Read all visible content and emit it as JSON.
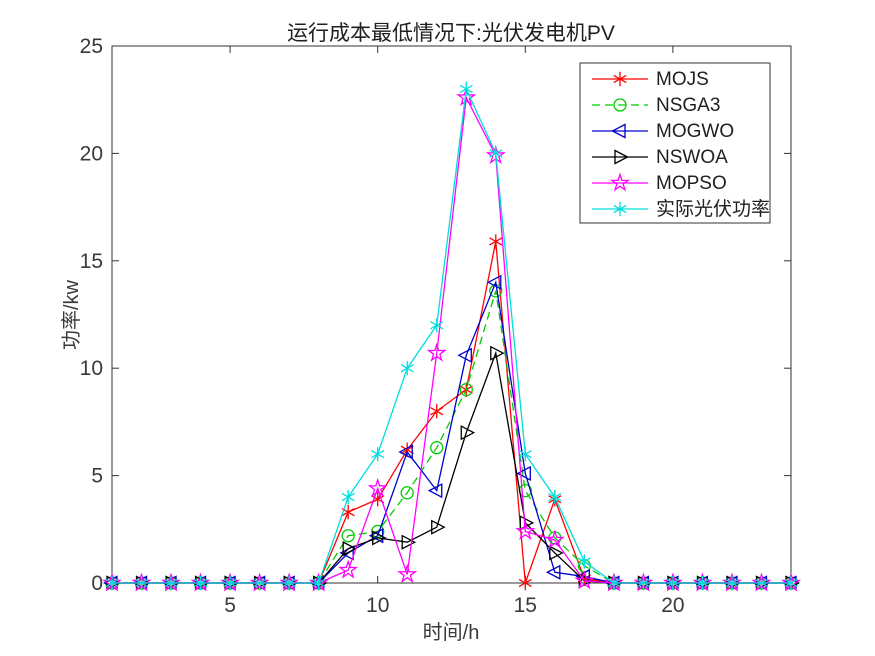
{
  "chart_data": {
    "type": "line",
    "title": "运行成本最低情况下:光伏发电机PV",
    "xlabel": "时间/h",
    "ylabel": "功率/kw",
    "xlim": [
      1,
      24
    ],
    "ylim": [
      0,
      25
    ],
    "xticks": [
      5,
      10,
      15,
      20
    ],
    "yticks": [
      0,
      5,
      10,
      15,
      20,
      25
    ],
    "grid": false,
    "legend_position": "top-right",
    "axis_color": "#333333",
    "tick_label_color": "#3a3a3a",
    "x": [
      1,
      2,
      3,
      4,
      5,
      6,
      7,
      8,
      9,
      10,
      11,
      12,
      13,
      14,
      15,
      16,
      17,
      18,
      19,
      20,
      21,
      22,
      23,
      24
    ],
    "series": [
      {
        "name": "MOJS",
        "color": "#ff0000",
        "marker": "asterisk",
        "line": "solid",
        "values": [
          0,
          0,
          0,
          0,
          0,
          0,
          0,
          0,
          3.3,
          3.9,
          6.2,
          8.0,
          9.0,
          15.9,
          0,
          3.9,
          0.2,
          0,
          0,
          0,
          0,
          0,
          0,
          0
        ]
      },
      {
        "name": "NSGA3",
        "color": "#00cc00",
        "marker": "circle",
        "line": "dashed",
        "values": [
          0,
          0,
          0,
          0,
          0,
          0,
          0,
          0,
          2.2,
          2.4,
          4.2,
          6.3,
          9.0,
          13.6,
          4.3,
          2.1,
          0.8,
          0,
          0,
          0,
          0,
          0,
          0,
          0
        ]
      },
      {
        "name": "MOGWO",
        "color": "#0000cd",
        "marker": "triangle-left",
        "line": "solid",
        "values": [
          0,
          0,
          0,
          0,
          0,
          0,
          0,
          0,
          1.4,
          2.2,
          6.1,
          4.3,
          10.6,
          14.0,
          5.1,
          0.5,
          0.3,
          0,
          0,
          0,
          0,
          0,
          0,
          0
        ]
      },
      {
        "name": "NSWOA",
        "color": "#000000",
        "marker": "triangle-right",
        "line": "solid",
        "values": [
          0,
          0,
          0,
          0,
          0,
          0,
          0,
          0,
          1.6,
          2.1,
          1.9,
          2.6,
          7.0,
          10.7,
          2.8,
          1.4,
          0.1,
          0,
          0,
          0,
          0,
          0,
          0,
          0
        ]
      },
      {
        "name": "MOPSO",
        "color": "#ff00ff",
        "marker": "star5",
        "line": "solid",
        "values": [
          0,
          0,
          0,
          0,
          0,
          0,
          0,
          0,
          0.6,
          4.4,
          0.4,
          10.7,
          22.6,
          19.9,
          2.4,
          2.0,
          0.1,
          0,
          0,
          0,
          0,
          0,
          0,
          0
        ]
      },
      {
        "name": "实际光伏功率",
        "color": "#00dddd",
        "marker": "asterisk",
        "line": "solid",
        "values": [
          0,
          0,
          0,
          0,
          0,
          0,
          0,
          0,
          4.0,
          6.0,
          10.0,
          12.0,
          23.0,
          20.0,
          6.0,
          4.0,
          1.0,
          0,
          0,
          0,
          0,
          0,
          0,
          0
        ]
      }
    ]
  }
}
